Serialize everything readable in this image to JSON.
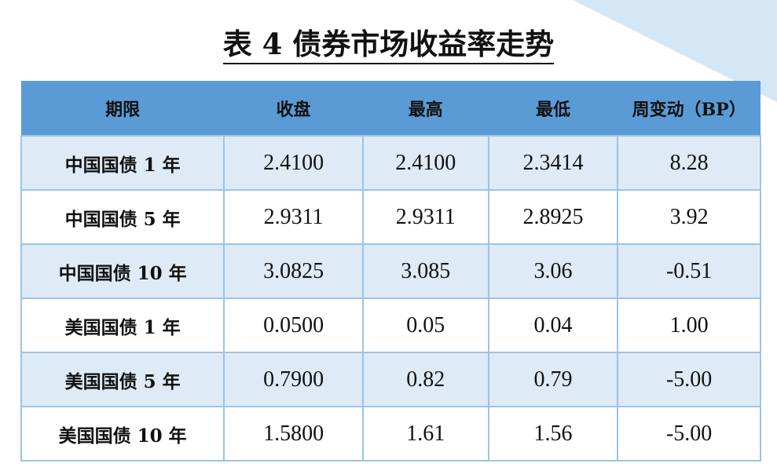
{
  "title": "表 4  债券市场收益率走势",
  "colors": {
    "header_bg": "#5b9bd5",
    "odd_row_bg": "#deebf7",
    "border": "#9dc3e6"
  },
  "table": {
    "headers": [
      "期限",
      "收盘",
      "最高",
      "最低",
      "周变动（BP）"
    ],
    "rows": [
      [
        "中国国债 1 年",
        "2.4100",
        "2.4100",
        "2.3414",
        "8.28"
      ],
      [
        "中国国债 5 年",
        "2.9311",
        "2.9311",
        "2.8925",
        "3.92"
      ],
      [
        "中国国债 10 年",
        "3.0825",
        "3.085",
        "3.06",
        "-0.51"
      ],
      [
        "美国国债 1 年",
        "0.0500",
        "0.05",
        "0.04",
        "1.00"
      ],
      [
        "美国国债 5 年",
        "0.7900",
        "0.82",
        "0.79",
        "-5.00"
      ],
      [
        "美国国债 10 年",
        "1.5800",
        "1.61",
        "1.56",
        "-5.00"
      ]
    ]
  }
}
